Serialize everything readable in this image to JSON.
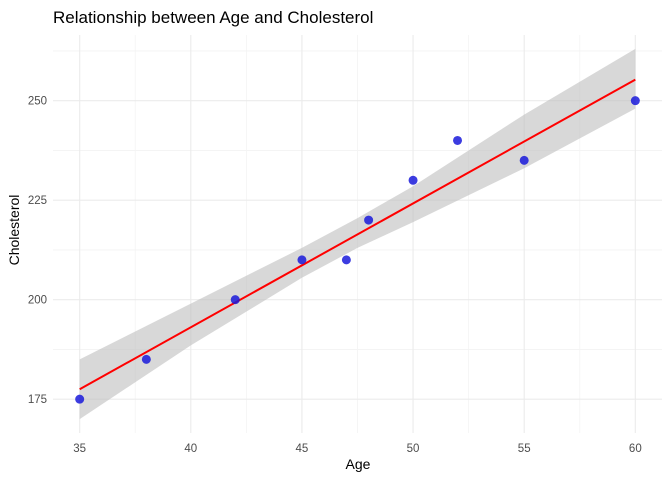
{
  "chart_data": {
    "type": "scatter",
    "title": "Relationship between Age and Cholesterol",
    "xlabel": "Age",
    "ylabel": "Cholesterol",
    "xlim": [
      33.8,
      61.2
    ],
    "ylim": [
      166.5,
      266.5
    ],
    "x_ticks": [
      35,
      40,
      45,
      50,
      55,
      60
    ],
    "y_ticks": [
      175,
      200,
      225,
      250
    ],
    "grid": true,
    "points": [
      {
        "x": 35,
        "y": 175
      },
      {
        "x": 38,
        "y": 185
      },
      {
        "x": 42,
        "y": 200
      },
      {
        "x": 45,
        "y": 210
      },
      {
        "x": 47,
        "y": 210
      },
      {
        "x": 48,
        "y": 220
      },
      {
        "x": 50,
        "y": 230
      },
      {
        "x": 52,
        "y": 240
      },
      {
        "x": 55,
        "y": 235
      },
      {
        "x": 60,
        "y": 250
      }
    ],
    "fit_line": {
      "x": [
        35,
        60
      ],
      "y": [
        177.5,
        255.3
      ]
    },
    "confidence_band": {
      "x": [
        35,
        40,
        45,
        47.5,
        50,
        55,
        60
      ],
      "lower": [
        170.0,
        188.5,
        205.5,
        213.0,
        219.5,
        233.0,
        248.0
      ],
      "upper": [
        185.0,
        199.0,
        213.0,
        220.5,
        228.5,
        246.5,
        263.0
      ]
    },
    "colors": {
      "points": "#1a1adb",
      "fit_line": "#ff0000",
      "band": "#bebebe",
      "grid_major": "#ebebeb",
      "grid_minor": "#f3f3f3"
    }
  }
}
